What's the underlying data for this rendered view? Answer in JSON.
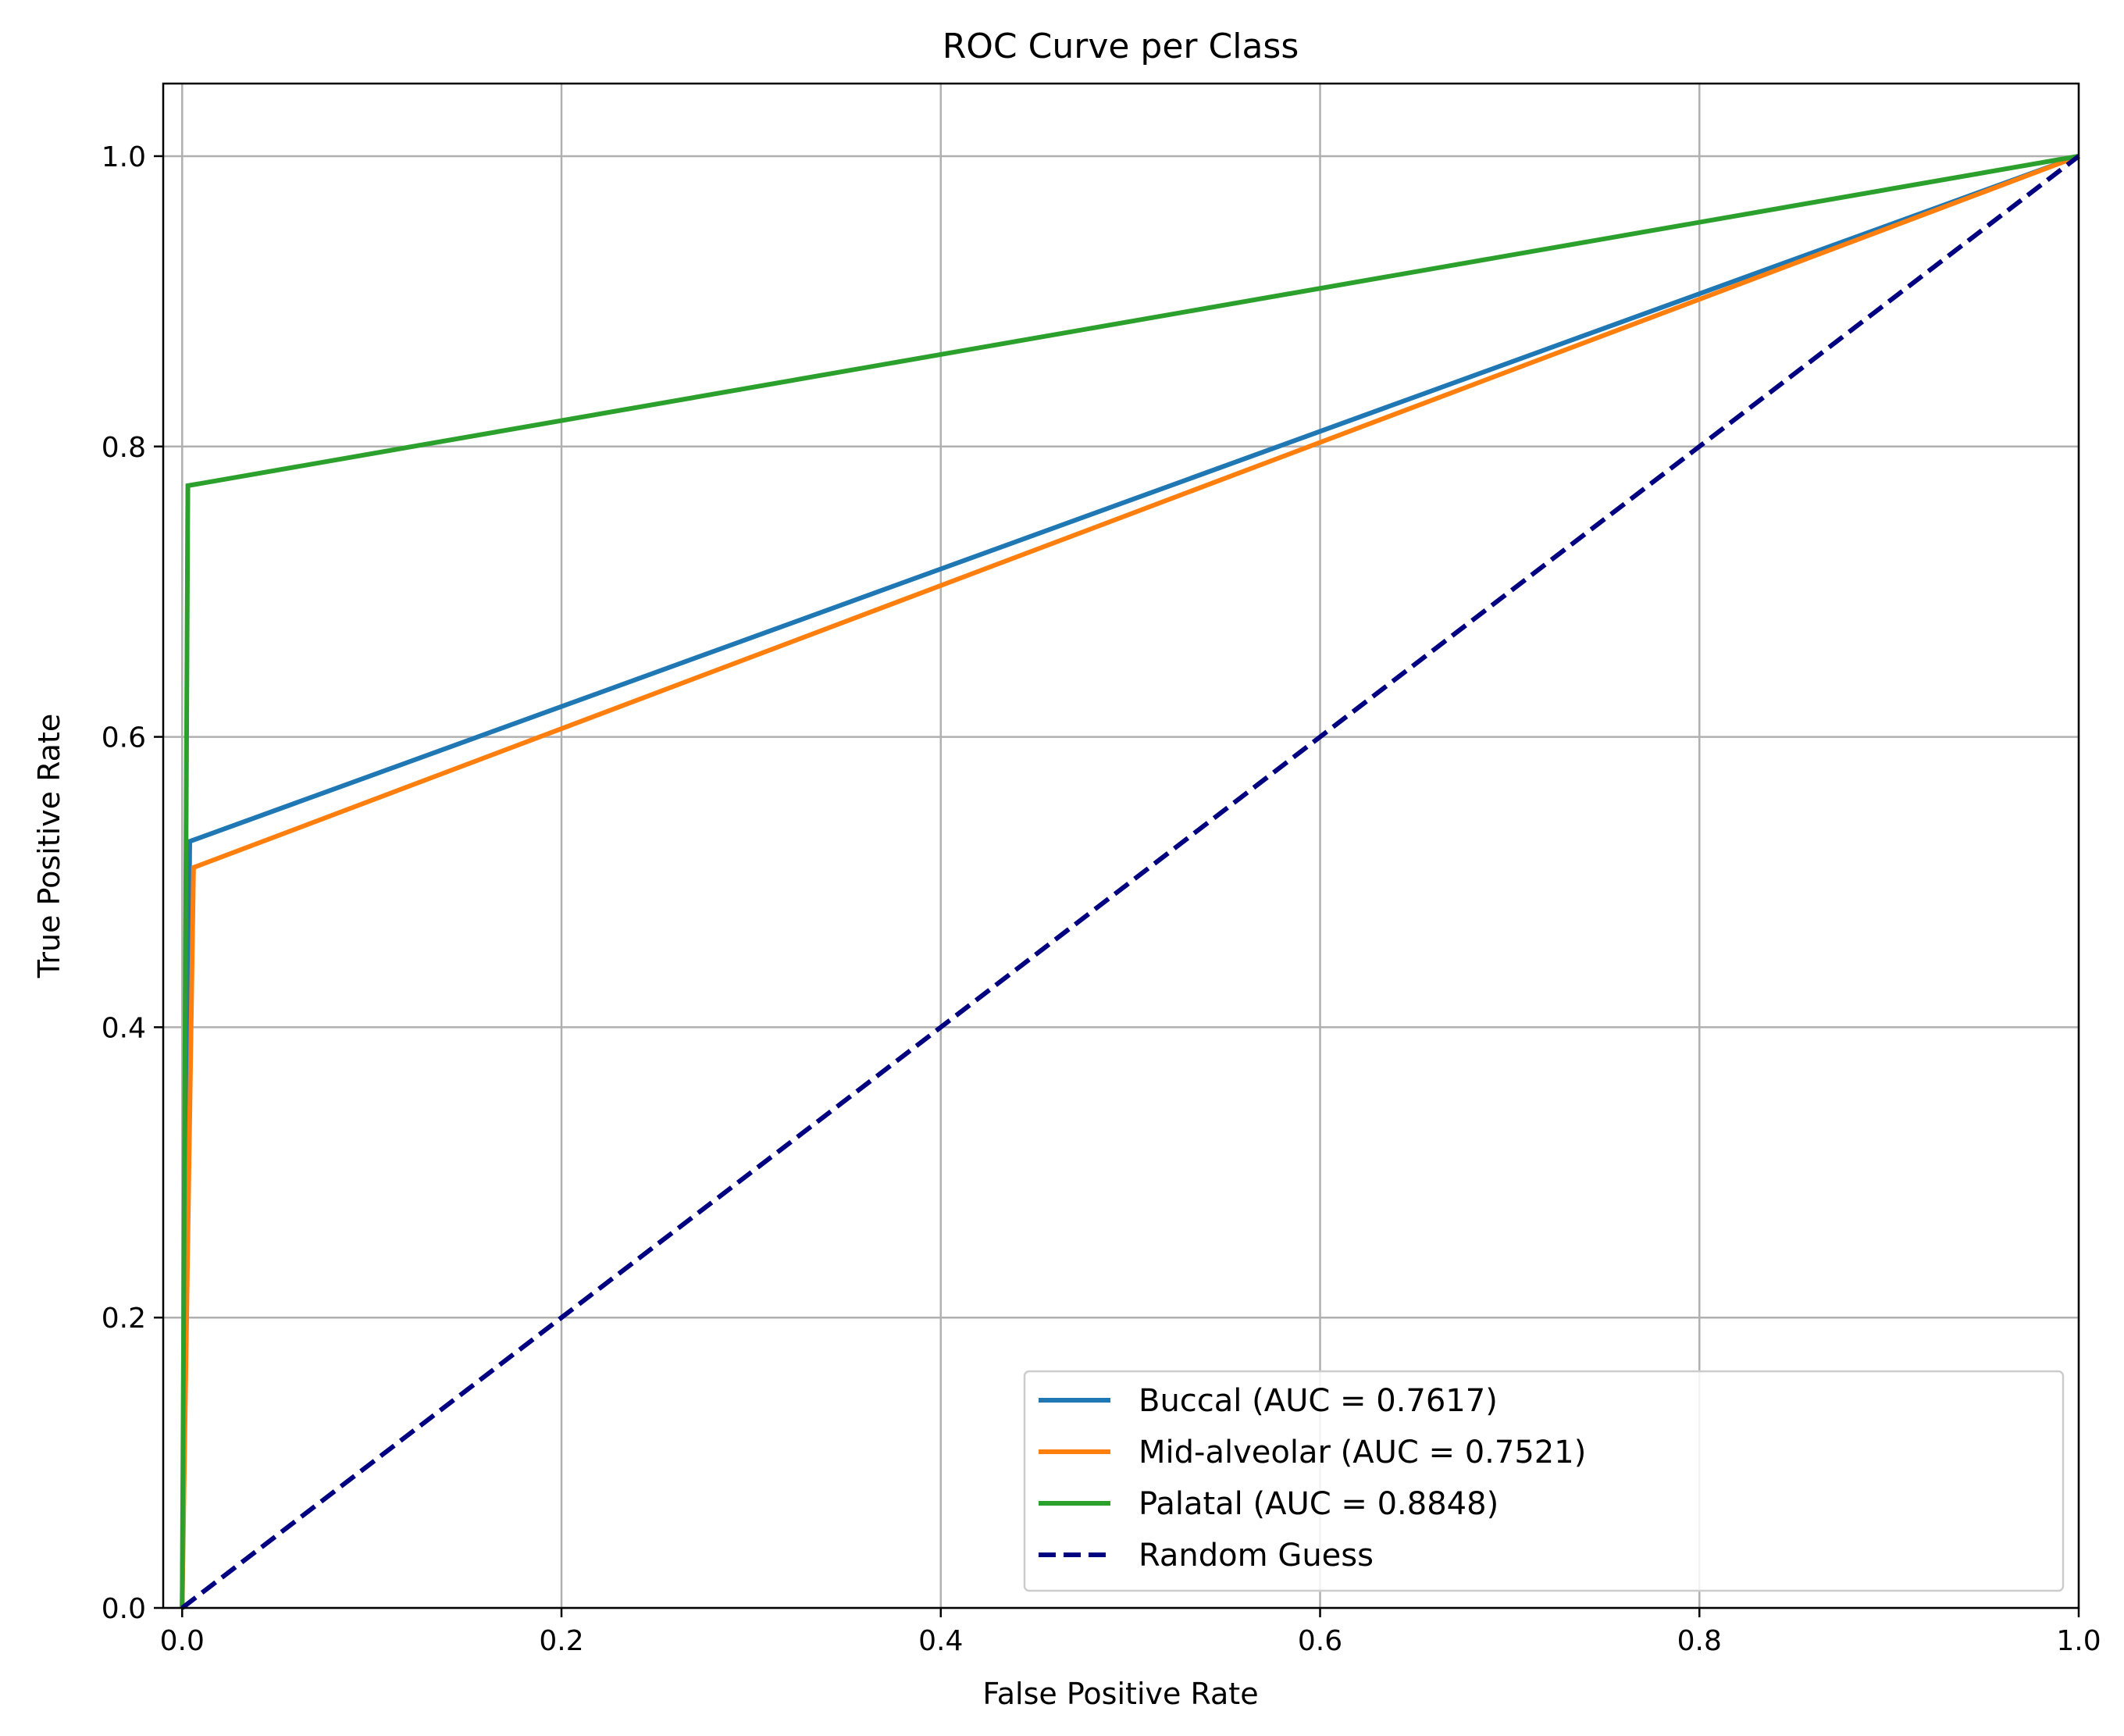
{
  "chart_data": {
    "type": "line",
    "title": "ROC Curve per Class",
    "xlabel": "False Positive Rate",
    "ylabel": "True Positive Rate",
    "xlim": [
      -0.01,
      1.0
    ],
    "ylim": [
      0.0,
      1.05
    ],
    "xticks": [
      0.0,
      0.2,
      0.4,
      0.6,
      0.8,
      1.0
    ],
    "xtick_labels": [
      "0.0",
      "0.2",
      "0.4",
      "0.6",
      "0.8",
      "1.0"
    ],
    "yticks": [
      0.0,
      0.2,
      0.4,
      0.6,
      0.8,
      1.0
    ],
    "ytick_labels": [
      "0.0",
      "0.2",
      "0.4",
      "0.6",
      "0.8",
      "1.0"
    ],
    "grid": true,
    "legend_position": "lower-right",
    "series": [
      {
        "name": "Buccal (AUC = 0.7617)",
        "color": "#1f77b4",
        "dash": false,
        "x": [
          0.0,
          0.004,
          1.0
        ],
        "y": [
          0.0,
          0.528,
          1.0
        ]
      },
      {
        "name": "Mid-alveolar (AUC = 0.7521)",
        "color": "#ff7f0e",
        "dash": false,
        "x": [
          0.0,
          0.006,
          1.0
        ],
        "y": [
          0.0,
          0.51,
          1.0
        ]
      },
      {
        "name": "Palatal (AUC = 0.8848)",
        "color": "#2ca02c",
        "dash": false,
        "x": [
          0.0,
          0.003,
          1.0
        ],
        "y": [
          0.0,
          0.773,
          1.0
        ]
      },
      {
        "name": "Random Guess",
        "color": "#000080",
        "dash": true,
        "x": [
          0.0,
          1.0
        ],
        "y": [
          0.0,
          1.0
        ]
      }
    ]
  }
}
